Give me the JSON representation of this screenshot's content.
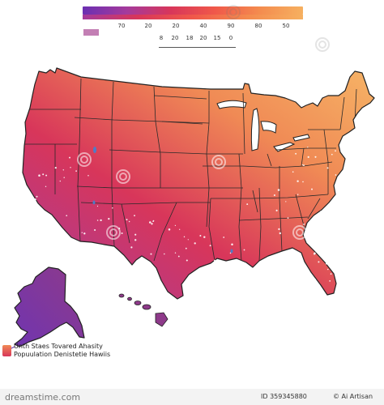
{
  "colors": {
    "scale": [
      "#6b2fb2",
      "#a43a9c",
      "#d8365a",
      "#f0584a",
      "#f48b4e",
      "#f6b060"
    ],
    "legend_swatch": "#c37fb4",
    "map_hot": "#d8365a",
    "map_warm": "#f08a55",
    "map_cool": "#f6b466",
    "alaska": "#7035b0",
    "hawaii": "#8e3a8a"
  },
  "legend": {
    "top_ticks": [
      "70",
      "20",
      "20",
      "40",
      "90",
      "80",
      "50"
    ],
    "bottom_ticks": [
      "8",
      "20",
      "18",
      "20",
      "15",
      "0"
    ]
  },
  "caption": {
    "line1": "Unth Staes Tovared Ahasity",
    "line2": "Popuulation Denistetie Hawiis"
  },
  "footer": {
    "brand": "dreamstime.com",
    "id_text": "ID 359345880",
    "author_text": "© Ai Artisan"
  },
  "map": {
    "title": "",
    "icons": [
      "watermark-icon"
    ]
  }
}
